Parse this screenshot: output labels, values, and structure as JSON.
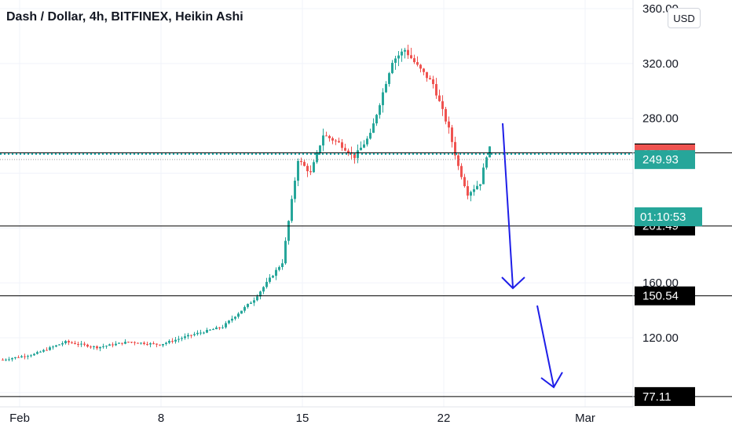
{
  "header": {
    "title": "Dash / Dollar, 4h, BITFINEX, Heikin Ashi",
    "currency_button": "USD"
  },
  "colors": {
    "up": "#26a69a",
    "down": "#ef5350",
    "arrow": "#1e1ee8",
    "cyan": "#00a0a0"
  },
  "chart_data": {
    "type": "candlestick",
    "title": "Dash / Dollar, 4h, BITFINEX, Heikin Ashi",
    "ylim": [
      75,
      360
    ],
    "y_ticks": [
      "360.00",
      "320.00",
      "280.00",
      "160.00",
      "120.00",
      "77.11"
    ],
    "x_ticks": [
      "Feb",
      "8",
      "15",
      "22",
      "Mar"
    ],
    "horizontal_levels": [
      {
        "price": "254.79",
        "style": "solid",
        "tag_color": "#000000"
      },
      {
        "price": "254.05",
        "style": "dotted",
        "tag_color": "#ef5350"
      },
      {
        "price": "249.93",
        "style": "dotted-gray",
        "tag_color": "#26a69a"
      },
      {
        "price": "201.49",
        "style": "solid",
        "tag_color": "#000000"
      },
      {
        "price": "150.54",
        "style": "solid",
        "tag_color": "#000000"
      },
      {
        "price": "77.11",
        "style": "solid",
        "tag_color": "#000000"
      }
    ],
    "countdown": "01:10:53",
    "key_prices": [
      {
        "t": 0,
        "p": 104
      },
      {
        "t": 20,
        "p": 108
      },
      {
        "t": 40,
        "p": 117
      },
      {
        "t": 60,
        "p": 113
      },
      {
        "t": 80,
        "p": 117
      },
      {
        "t": 100,
        "p": 115
      },
      {
        "t": 120,
        "p": 122
      },
      {
        "t": 140,
        "p": 128
      },
      {
        "t": 160,
        "p": 148
      },
      {
        "t": 178,
        "p": 175
      },
      {
        "t": 188,
        "p": 250
      },
      {
        "t": 196,
        "p": 240
      },
      {
        "t": 204,
        "p": 268
      },
      {
        "t": 214,
        "p": 262
      },
      {
        "t": 224,
        "p": 252
      },
      {
        "t": 234,
        "p": 268
      },
      {
        "t": 248,
        "p": 322
      },
      {
        "t": 256,
        "p": 330
      },
      {
        "t": 264,
        "p": 318
      },
      {
        "t": 274,
        "p": 305
      },
      {
        "t": 284,
        "p": 272
      },
      {
        "t": 290,
        "p": 245
      },
      {
        "t": 296,
        "p": 225
      },
      {
        "t": 304,
        "p": 233
      },
      {
        "t": 309,
        "p": 258
      }
    ]
  }
}
